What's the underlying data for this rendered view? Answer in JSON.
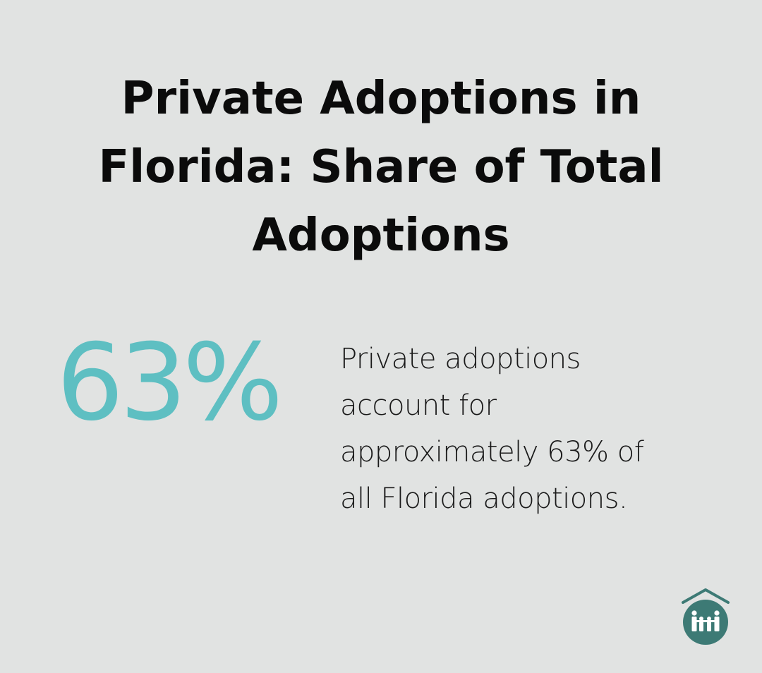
{
  "title": {
    "lines": [
      "Private Adoptions in",
      "Florida: Share of Total",
      "Adoptions"
    ]
  },
  "stat": {
    "value": "63%",
    "color": "#5ebfc2"
  },
  "description": {
    "lines": [
      "Private adoptions",
      "account for",
      "approximately 63% of",
      "all Florida adoptions."
    ]
  },
  "logo": {
    "icon": "family-house-icon",
    "color": "#3d7a75"
  }
}
